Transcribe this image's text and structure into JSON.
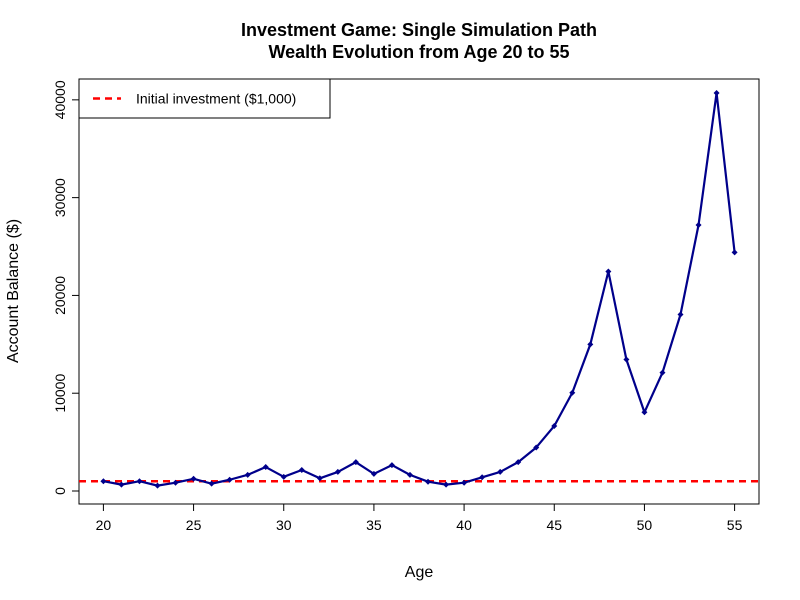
{
  "chart_data": {
    "type": "line",
    "title": "Investment Game: Single Simulation Path",
    "subtitle": "Wealth Evolution from Age 20 to 55",
    "xlabel": "Age",
    "ylabel": "Account Balance ($)",
    "xlim": [
      20,
      55
    ],
    "ylim": [
      0,
      40700
    ],
    "x_ticks": [
      20,
      25,
      30,
      35,
      40,
      45,
      50,
      55
    ],
    "y_ticks": [
      0,
      10000,
      20000,
      30000,
      40000
    ],
    "grid": false,
    "legend": {
      "position": "top-left",
      "entries": [
        "Initial investment ($1,000)"
      ]
    },
    "reference_line": {
      "y": 1000,
      "label": "Initial investment ($1,000)",
      "color": "#ff0000",
      "style": "dashed"
    },
    "series": [
      {
        "color": "#00008b",
        "x": [
          20,
          21,
          22,
          23,
          24,
          25,
          26,
          27,
          28,
          29,
          30,
          31,
          32,
          33,
          34,
          35,
          36,
          37,
          38,
          39,
          40,
          41,
          42,
          43,
          44,
          45,
          46,
          47,
          48,
          49,
          50,
          51,
          52,
          53,
          54,
          55
        ],
        "values": [
          1000,
          650,
          1000,
          550,
          850,
          1250,
          750,
          1150,
          1650,
          2450,
          1450,
          2150,
          1300,
          1950,
          2950,
          1750,
          2650,
          1650,
          950,
          650,
          850,
          1400,
          1950,
          2950,
          4450,
          6650,
          10050,
          15000,
          22450,
          13450,
          8050,
          12100,
          18050,
          27200,
          40700,
          24400
        ]
      }
    ]
  }
}
